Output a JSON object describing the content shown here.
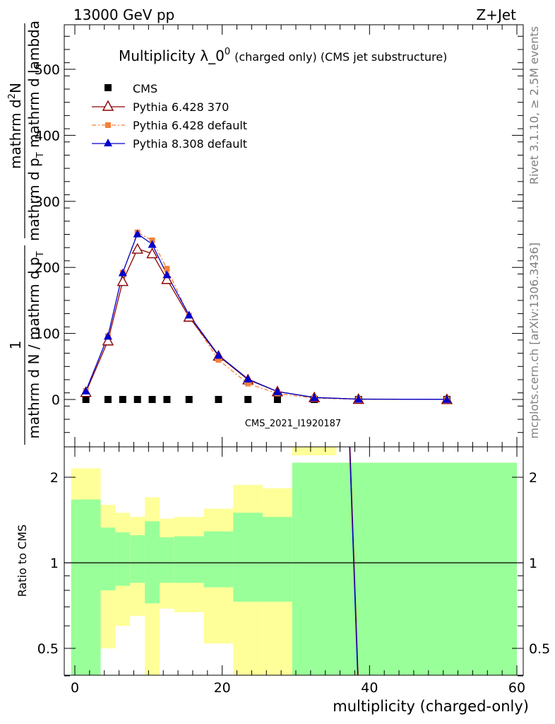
{
  "header": {
    "left": "13000 GeV pp",
    "right": "Z+Jet"
  },
  "side_text": {
    "top": "Rivet 3.1.10, ≥ 2.5M events",
    "bottom": "mcplots.cern.ch [arXiv:1306.3436]"
  },
  "analysis_id": "CMS_2021_I1920187",
  "colors": {
    "cms": "#000000",
    "pythia6_370": "#8b0000",
    "pythia6_default": "#f4813b",
    "pythia8_default": "#0000cc",
    "band_inner": "#99ff99",
    "band_outer": "#ffff99"
  },
  "chart_data": [
    {
      "type": "line",
      "title_main": "Multiplicity λ_0",
      "title_sup": "0",
      "title_suffix": "(charged only) (CMS jet substructure)",
      "ylabel_num": "1",
      "ylabel_den": "mathrm d N / mathrm d p",
      "ylabel_den_sub": "T",
      "ylabel_right_num": "mathrm d",
      "ylabel_right_num_sup": "2",
      "ylabel_right_num_after": "N",
      "ylabel_right_den": "mathrm d p",
      "ylabel_right_den_sub": "T",
      "ylabel_right_den_after": " mathrm d lambda",
      "xlim": [
        -1.5,
        60.5
      ],
      "ylim": [
        -65,
        570
      ],
      "yticks": [
        0,
        100,
        200,
        300,
        400,
        500
      ],
      "xticks": [
        0,
        20,
        40,
        60
      ],
      "legend_position": "top-left",
      "series": [
        {
          "name": "CMS",
          "marker": "square",
          "x": [
            1.5,
            4.5,
            6.5,
            8.5,
            10.5,
            12.5,
            15.5,
            19.5,
            23.5,
            27.5,
            32.5,
            38.5,
            50.5
          ],
          "values": [
            0,
            0,
            0,
            0,
            0,
            0,
            0,
            0,
            0,
            0,
            0,
            0,
            0
          ]
        },
        {
          "name": "Pythia 6.428 370",
          "marker": "open-triangle",
          "x": [
            1.5,
            4.5,
            6.5,
            8.5,
            10.5,
            12.5,
            15.5,
            19.5,
            23.5,
            27.5,
            32.5,
            38.5,
            50.5
          ],
          "values": [
            11,
            89,
            179,
            228,
            221,
            182,
            125,
            66,
            30,
            12,
            3,
            0.5,
            0.2
          ]
        },
        {
          "name": "Pythia 6.428 default",
          "marker": "small-square",
          "x": [
            1.5,
            4.5,
            6.5,
            8.5,
            10.5,
            12.5,
            15.5,
            19.5,
            23.5,
            27.5,
            32.5,
            38.5,
            50.5
          ],
          "values": [
            13,
            96,
            192,
            253,
            241,
            198,
            127,
            60,
            24,
            9,
            2,
            0.3,
            0.1
          ]
        },
        {
          "name": "Pythia 8.308 default",
          "marker": "filled-triangle",
          "x": [
            1.5,
            4.5,
            6.5,
            8.5,
            10.5,
            12.5,
            15.5,
            19.5,
            23.5,
            27.5,
            32.5,
            38.5,
            50.5
          ],
          "values": [
            13,
            96,
            192,
            251,
            235,
            189,
            128,
            67,
            31,
            12,
            3,
            0.5,
            0.2
          ]
        }
      ]
    },
    {
      "type": "area",
      "ylabel": "Ratio to CMS",
      "xlabel": "multiplicity (charged-only)",
      "xlim": [
        -1.5,
        60.5
      ],
      "ylim": [
        0.35,
        2.25
      ],
      "yticks": [
        0.5,
        1,
        2
      ],
      "xticks": [
        0,
        20,
        40,
        60
      ],
      "reference_line": 1,
      "bins": [
        {
          "x0": -0.5,
          "x1": 3.5,
          "inner": [
            0.0,
            1.67
          ],
          "outer": [
            0.0,
            2.15
          ]
        },
        {
          "x0": 3.5,
          "x1": 5.5,
          "inner": [
            0.8,
            1.33
          ],
          "outer": [
            0.5,
            1.6
          ]
        },
        {
          "x0": 5.5,
          "x1": 7.5,
          "inner": [
            0.83,
            1.28
          ],
          "outer": [
            0.6,
            1.5
          ]
        },
        {
          "x0": 7.5,
          "x1": 9.5,
          "inner": [
            0.85,
            1.25
          ],
          "outer": [
            0.65,
            1.45
          ]
        },
        {
          "x0": 9.5,
          "x1": 11.5,
          "inner": [
            0.72,
            1.4
          ],
          "outer": [
            0.0,
            1.7
          ]
        },
        {
          "x0": 11.5,
          "x1": 13.5,
          "inner": [
            0.85,
            1.23
          ],
          "outer": [
            0.69,
            1.43
          ]
        },
        {
          "x0": 13.5,
          "x1": 17.5,
          "inner": [
            0.85,
            1.24
          ],
          "outer": [
            0.67,
            1.45
          ]
        },
        {
          "x0": 17.5,
          "x1": 21.5,
          "inner": [
            0.82,
            1.29
          ],
          "outer": [
            0.52,
            1.55
          ]
        },
        {
          "x0": 21.5,
          "x1": 25.5,
          "inner": [
            0.73,
            1.5
          ],
          "outer": [
            0.0,
            1.88
          ]
        },
        {
          "x0": 25.5,
          "x1": 29.5,
          "inner": [
            0.73,
            1.45
          ],
          "outer": [
            0.0,
            1.83
          ]
        },
        {
          "x0": 29.5,
          "x1": 60.0,
          "inner": [
            0.0,
            2.25
          ],
          "outer": [
            0.0,
            2.25
          ]
        }
      ],
      "band_overflow": [
        {
          "x0": 29.5,
          "x1": 35.5
        }
      ],
      "series_line": {
        "name": "Pythia 8.308 default",
        "x": [
          37.3,
          38.4
        ],
        "values": [
          2.25,
          0.35
        ]
      }
    }
  ]
}
